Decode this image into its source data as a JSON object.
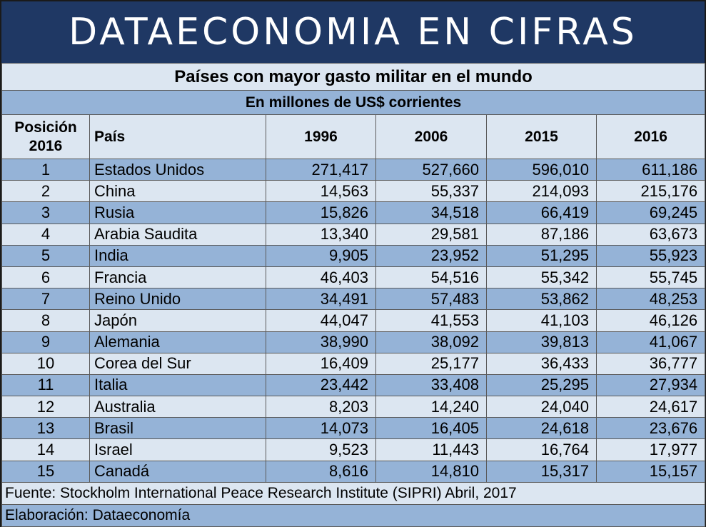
{
  "banner": "DATAECONOMIA EN CIFRAS",
  "chart_data": {
    "type": "table",
    "title": "Países con mayor gasto militar en el mundo",
    "subtitle": "En millones de US$ corrientes",
    "columns": [
      "Posición 2016",
      "País",
      "1996",
      "2006",
      "2015",
      "2016"
    ],
    "header": {
      "position_line1": "Posición",
      "position_line2": "2016",
      "country": "País",
      "years": [
        "1996",
        "2006",
        "2015",
        "2016"
      ]
    },
    "rows": [
      {
        "rank": "1",
        "country": "Estados Unidos",
        "values": [
          "271,417",
          "527,660",
          "596,010",
          "611,186"
        ]
      },
      {
        "rank": "2",
        "country": "China",
        "values": [
          "14,563",
          "55,337",
          "214,093",
          "215,176"
        ]
      },
      {
        "rank": "3",
        "country": "Rusia",
        "values": [
          "15,826",
          "34,518",
          "66,419",
          "69,245"
        ]
      },
      {
        "rank": "4",
        "country": "Arabia Saudita",
        "values": [
          "13,340",
          "29,581",
          "87,186",
          "63,673"
        ]
      },
      {
        "rank": "5",
        "country": "India",
        "values": [
          "9,905",
          "23,952",
          "51,295",
          "55,923"
        ]
      },
      {
        "rank": "6",
        "country": "Francia",
        "values": [
          "46,403",
          "54,516",
          "55,342",
          "55,745"
        ]
      },
      {
        "rank": "7",
        "country": "Reino Unido",
        "values": [
          "34,491",
          "57,483",
          "53,862",
          "48,253"
        ]
      },
      {
        "rank": "8",
        "country": "Japón",
        "values": [
          "44,047",
          "41,553",
          "41,103",
          "46,126"
        ]
      },
      {
        "rank": "9",
        "country": "Alemania",
        "values": [
          "38,990",
          "38,092",
          "39,813",
          "41,067"
        ]
      },
      {
        "rank": "10",
        "country": "Corea del Sur",
        "values": [
          "16,409",
          "25,177",
          "36,433",
          "36,777"
        ]
      },
      {
        "rank": "11",
        "country": "Italia",
        "values": [
          "23,442",
          "33,408",
          "25,295",
          "27,934"
        ]
      },
      {
        "rank": "12",
        "country": "Australia",
        "values": [
          "8,203",
          "14,240",
          "24,040",
          "24,617"
        ]
      },
      {
        "rank": "13",
        "country": "Brasil",
        "values": [
          "14,073",
          "16,405",
          "24,618",
          "23,676"
        ]
      },
      {
        "rank": "14",
        "country": "Israel",
        "values": [
          "9,523",
          "11,443",
          "16,764",
          "17,977"
        ]
      },
      {
        "rank": "15",
        "country": "Canadá",
        "values": [
          "8,616",
          "14,810",
          "15,317",
          "15,157"
        ]
      }
    ],
    "source": "Fuente: Stockholm International Peace Research Institute (SIPRI) Abril, 2017",
    "credit": "Elaboración: Dataeconomía"
  },
  "colors": {
    "banner_bg": "#1f3864",
    "band_dark": "#95b3d7",
    "band_light": "#dce6f1"
  }
}
